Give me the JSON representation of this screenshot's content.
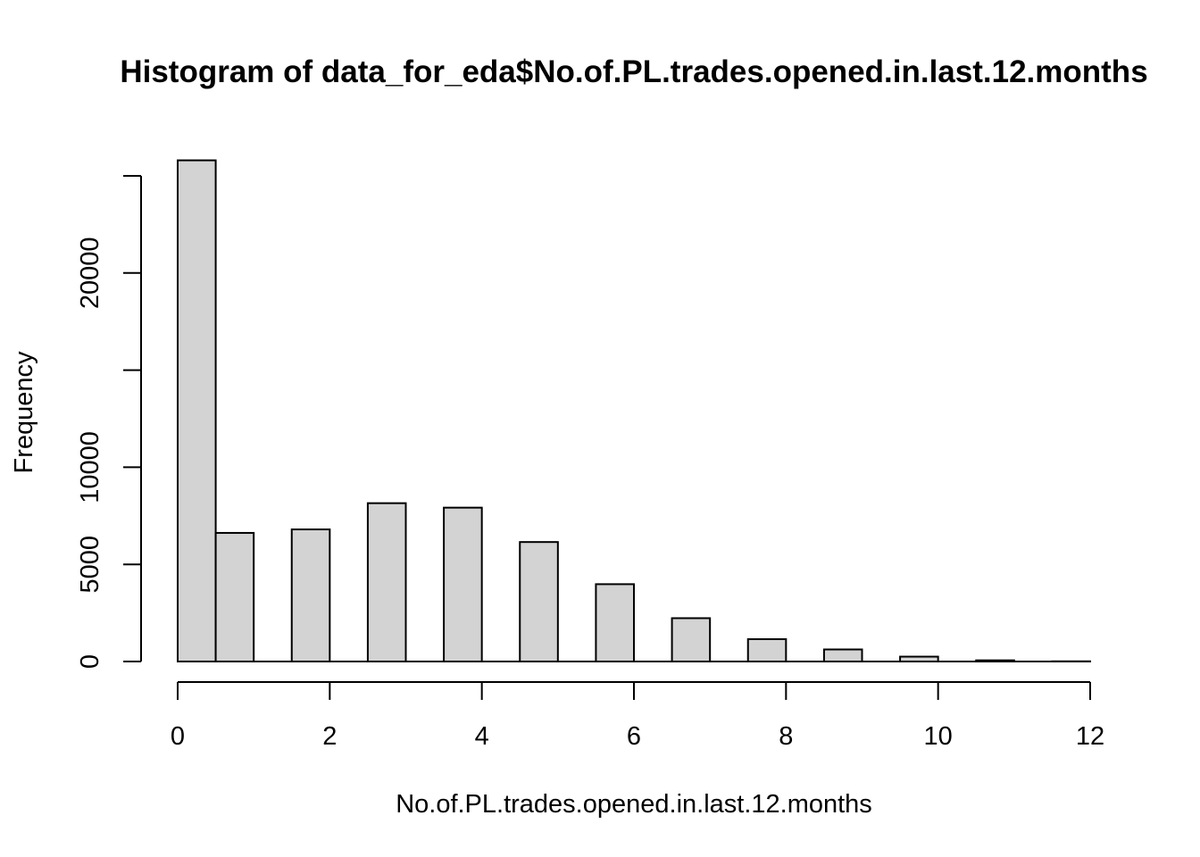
{
  "chart_data": {
    "type": "bar",
    "title": "Histogram of data_for_eda$No.of.PL.trades.opened.in.last.12.months",
    "xlabel": "No.of.PL.trades.opened.in.last.12.months",
    "ylabel": "Frequency",
    "bins": [
      {
        "start": 0.0,
        "end": 0.5,
        "count": 25800
      },
      {
        "start": 0.5,
        "end": 1.0,
        "count": 6620
      },
      {
        "start": 1.0,
        "end": 1.5,
        "count": 0
      },
      {
        "start": 1.5,
        "end": 2.0,
        "count": 6800
      },
      {
        "start": 2.0,
        "end": 2.5,
        "count": 0
      },
      {
        "start": 2.5,
        "end": 3.0,
        "count": 8150
      },
      {
        "start": 3.0,
        "end": 3.5,
        "count": 0
      },
      {
        "start": 3.5,
        "end": 4.0,
        "count": 7920
      },
      {
        "start": 4.0,
        "end": 4.5,
        "count": 0
      },
      {
        "start": 4.5,
        "end": 5.0,
        "count": 6150
      },
      {
        "start": 5.0,
        "end": 5.5,
        "count": 0
      },
      {
        "start": 5.5,
        "end": 6.0,
        "count": 3980
      },
      {
        "start": 6.0,
        "end": 6.5,
        "count": 0
      },
      {
        "start": 6.5,
        "end": 7.0,
        "count": 2230
      },
      {
        "start": 7.0,
        "end": 7.5,
        "count": 0
      },
      {
        "start": 7.5,
        "end": 8.0,
        "count": 1150
      },
      {
        "start": 8.0,
        "end": 8.5,
        "count": 0
      },
      {
        "start": 8.5,
        "end": 9.0,
        "count": 620
      },
      {
        "start": 9.0,
        "end": 9.5,
        "count": 0
      },
      {
        "start": 9.5,
        "end": 10.0,
        "count": 250
      },
      {
        "start": 10.0,
        "end": 10.5,
        "count": 0
      },
      {
        "start": 10.5,
        "end": 11.0,
        "count": 60
      },
      {
        "start": 11.0,
        "end": 11.5,
        "count": 0
      },
      {
        "start": 11.5,
        "end": 12.0,
        "count": 10
      }
    ],
    "xlim": [
      0,
      12
    ],
    "ylim": [
      0,
      25000
    ],
    "xticks": [
      0,
      2,
      4,
      6,
      8,
      10,
      12
    ],
    "yticks": [
      0,
      5000,
      10000,
      15000,
      20000,
      25000
    ],
    "ytick_labels": [
      "0",
      "5000",
      "10000",
      "",
      "20000",
      ""
    ],
    "grid": false,
    "colors": {
      "bar_fill": "#d3d3d3",
      "bar_stroke": "#000000"
    }
  }
}
